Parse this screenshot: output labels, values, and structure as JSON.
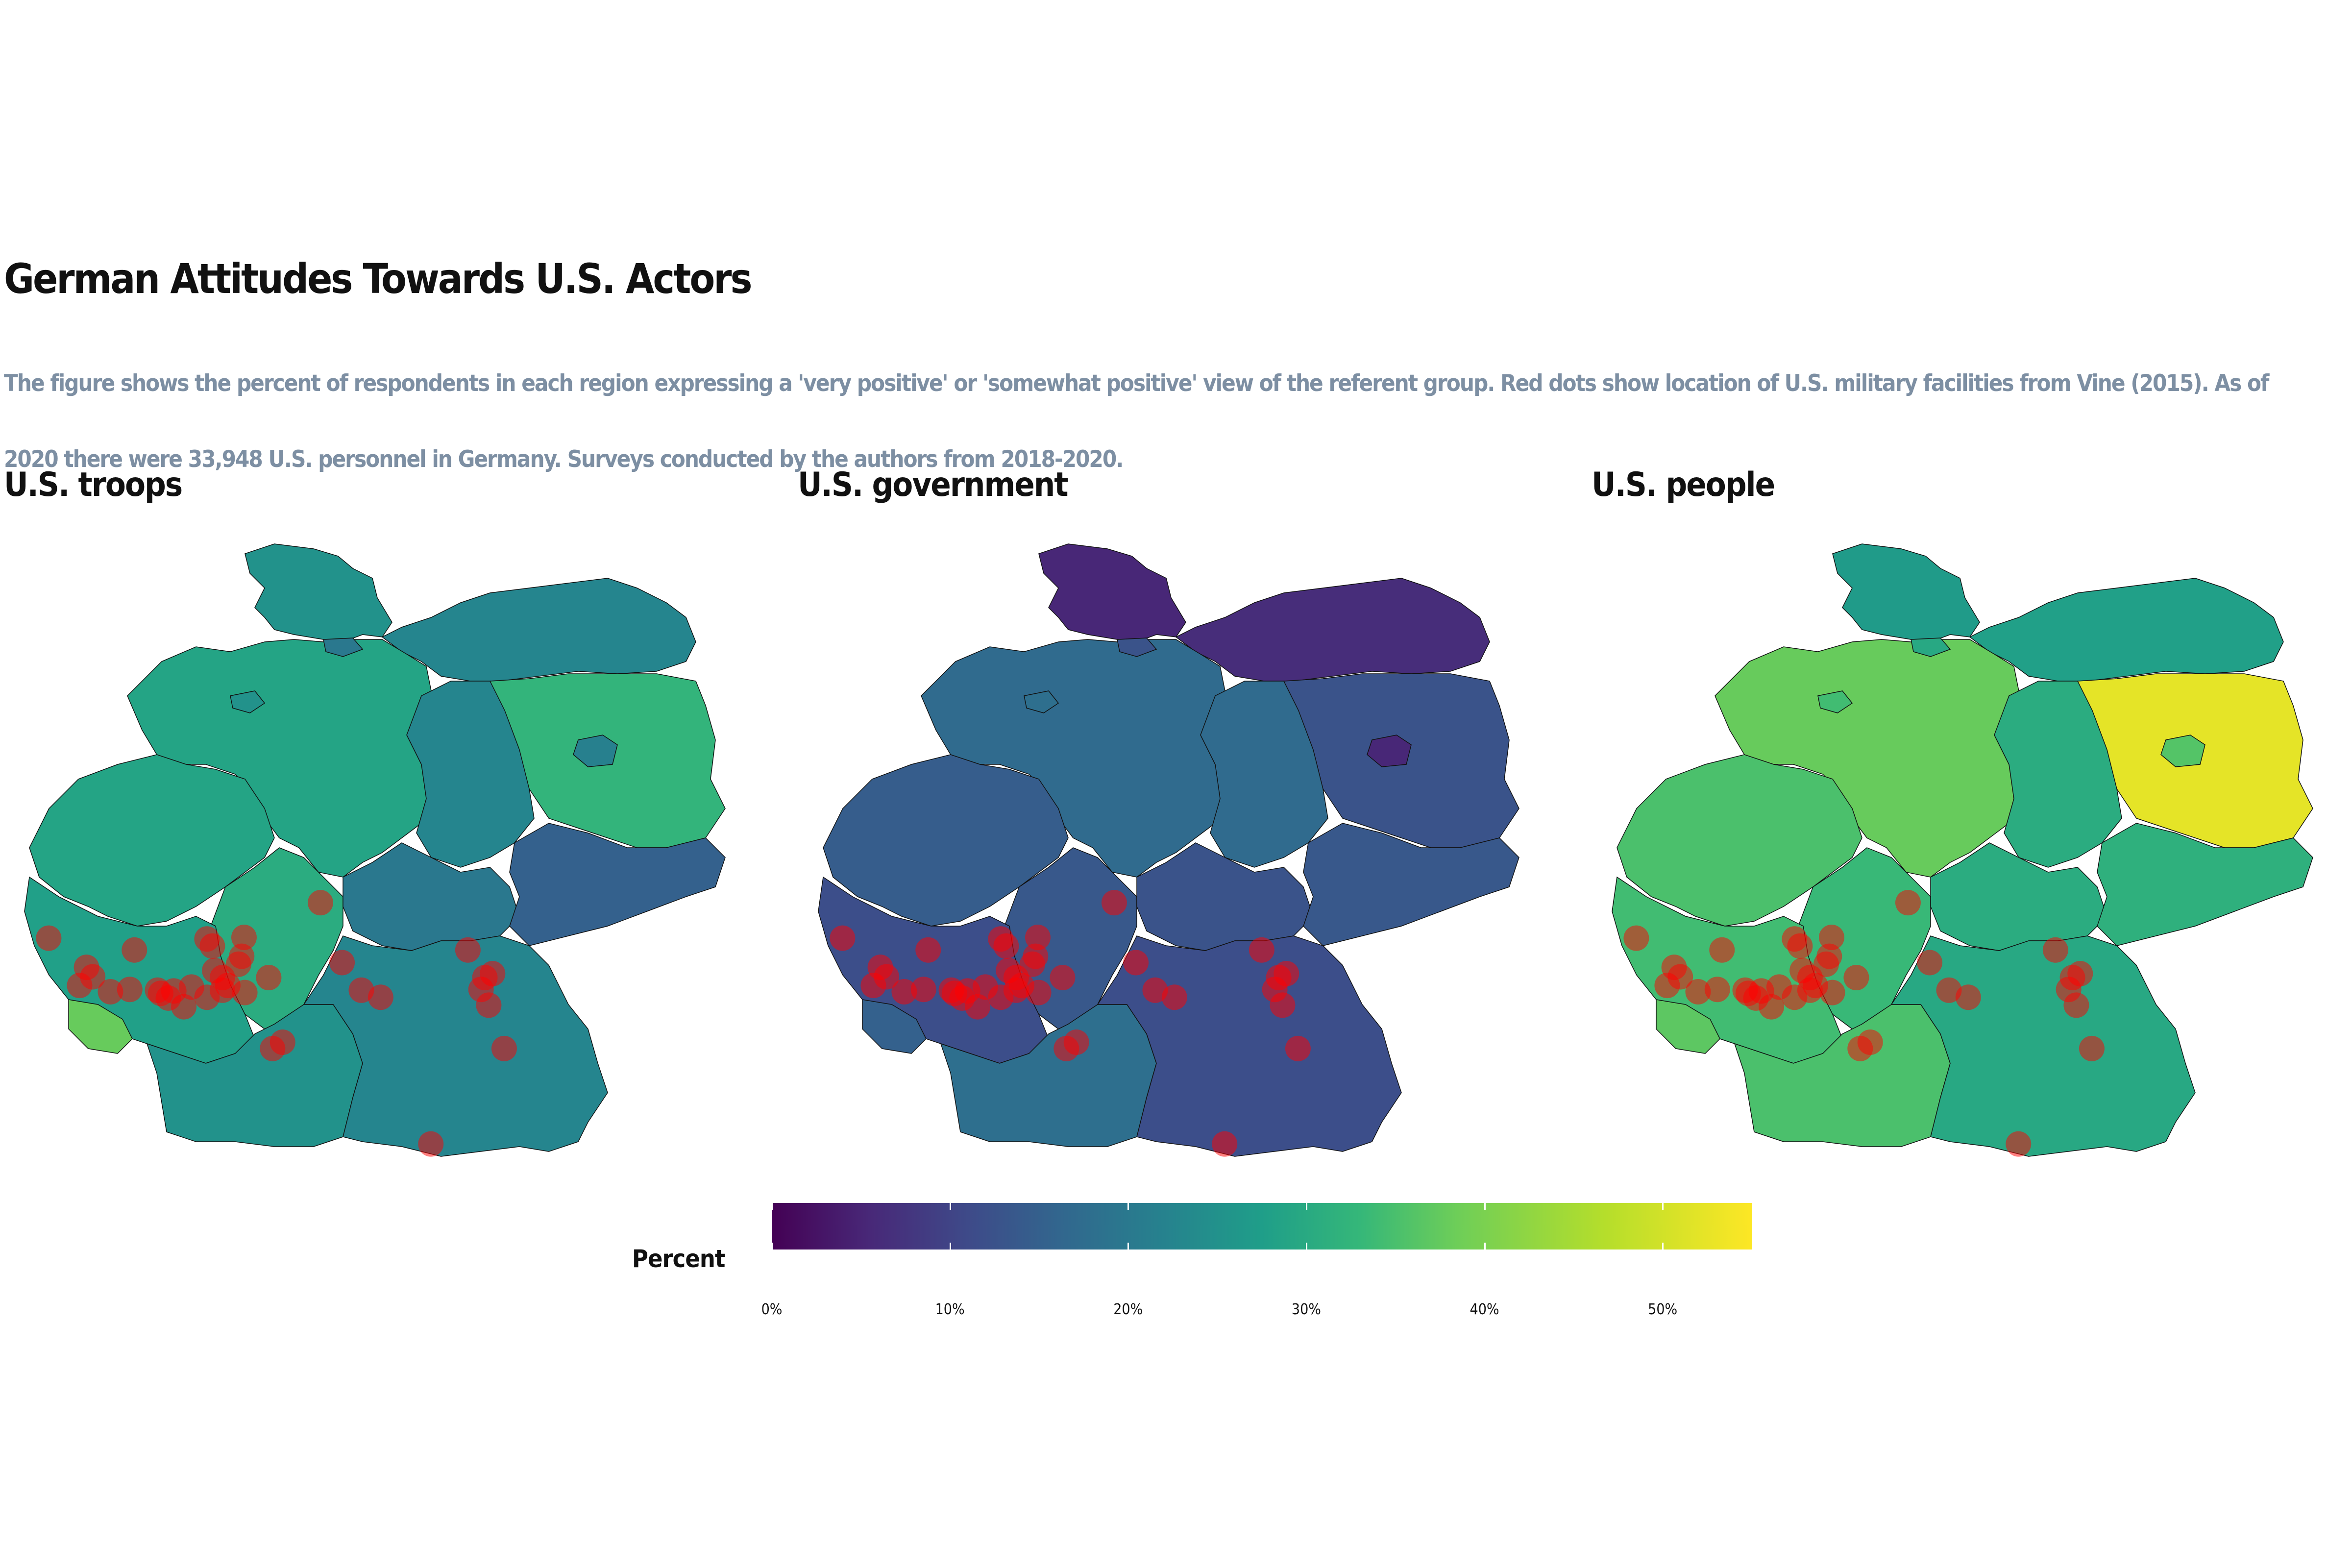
{
  "title": "German Attitudes Towards U.S. Actors",
  "subtitle": "The figure shows the percent of respondents in each region expressing a 'very positive' or 'somewhat positive' view of the referent group. Red dots show location of U.S. military facilities from Vine (2015). As of 2020 there were 33,948 U.S. personnel in Germany. Surveys conducted by the authors from 2018-2020.",
  "panels": [
    {
      "title": "U.S. troops",
      "region_values": {
        "schleswig-holstein": 28,
        "hamburg": 22,
        "mecklenburg-vorpommern": 25,
        "niedersachsen": 32,
        "bremen": 28,
        "brandenburg": 36,
        "berlin": 24,
        "sachsen-anhalt": 25,
        "nordrhein-westfalen": 32,
        "hessen": 34,
        "thueringen": 22,
        "sachsen": 17,
        "rheinland-pfalz": 31,
        "saarland": 42,
        "baden-wuerttemberg": 28,
        "bayern": 25
      }
    },
    {
      "title": "U.S. government",
      "region_values": {
        "schleswig-holstein": 6,
        "hamburg": 14,
        "mecklenburg-vorpommern": 7,
        "niedersachsen": 19,
        "bremen": 20,
        "brandenburg": 14,
        "berlin": 6,
        "sachsen-anhalt": 19,
        "nordrhein-westfalen": 16,
        "hessen": 15,
        "thueringen": 14,
        "sachsen": 15,
        "rheinland-pfalz": 13,
        "saarland": 17,
        "baden-wuerttemberg": 20,
        "bayern": 13
      }
    },
    {
      "title": "U.S. people",
      "region_values": {
        "schleswig-holstein": 30,
        "hamburg": 33,
        "mecklenburg-vorpommern": 31,
        "niedersachsen": 42,
        "bremen": 38,
        "brandenburg": 53,
        "berlin": 40,
        "sachsen-anhalt": 34,
        "nordrhein-westfalen": 39,
        "hessen": 37,
        "thueringen": 34,
        "sachsen": 35,
        "rheinland-pfalz": 38,
        "saarland": 41,
        "baden-wuerttemberg": 39,
        "bayern": 33
      }
    }
  ],
  "legend": {
    "title": "Percent",
    "min": 0,
    "max": 55,
    "ticks": [
      0,
      10,
      20,
      30,
      40,
      50
    ],
    "tick_labels": [
      "0%",
      "10%",
      "20%",
      "30%",
      "40%",
      "50%"
    ]
  },
  "colors": {
    "viridis": [
      "#440154",
      "#482878",
      "#3e4a89",
      "#31688e",
      "#26828e",
      "#1f9e89",
      "#35b779",
      "#6ece58",
      "#b5de2b",
      "#fde725"
    ],
    "facility_dot": "#ff0000",
    "border": "#111111"
  },
  "facilities": [
    {
      "lat": 50.1,
      "lon": 6.15
    },
    {
      "lat": 49.95,
      "lon": 7.26
    },
    {
      "lat": 49.73,
      "lon": 6.64
    },
    {
      "lat": 49.61,
      "lon": 6.72
    },
    {
      "lat": 49.5,
      "lon": 6.55
    },
    {
      "lat": 49.42,
      "lon": 6.95
    },
    {
      "lat": 49.45,
      "lon": 7.2
    },
    {
      "lat": 49.44,
      "lon": 7.56
    },
    {
      "lat": 49.43,
      "lon": 7.77
    },
    {
      "lat": 49.4,
      "lon": 7.6
    },
    {
      "lat": 49.34,
      "lon": 7.7
    },
    {
      "lat": 49.48,
      "lon": 8.0
    },
    {
      "lat": 49.5,
      "lon": 8.47
    },
    {
      "lat": 49.41,
      "lon": 8.69
    },
    {
      "lat": 49.35,
      "lon": 8.2
    },
    {
      "lat": 49.44,
      "lon": 8.4
    },
    {
      "lat": 49.6,
      "lon": 8.4
    },
    {
      "lat": 49.87,
      "lon": 8.65
    },
    {
      "lat": 50.0,
      "lon": 8.27
    },
    {
      "lat": 50.11,
      "lon": 8.68
    },
    {
      "lat": 50.09,
      "lon": 8.2
    },
    {
      "lat": 49.77,
      "lon": 8.61
    },
    {
      "lat": 49.69,
      "lon": 8.3
    },
    {
      "lat": 49.23,
      "lon": 7.9
    },
    {
      "lat": 49.6,
      "lon": 9.0
    },
    {
      "lat": 50.55,
      "lon": 9.67
    },
    {
      "lat": 49.79,
      "lon": 9.95
    },
    {
      "lat": 49.44,
      "lon": 10.2
    },
    {
      "lat": 49.35,
      "lon": 10.45
    },
    {
      "lat": 48.78,
      "lon": 9.18
    },
    {
      "lat": 48.7,
      "lon": 9.05
    },
    {
      "lat": 49.95,
      "lon": 11.58
    },
    {
      "lat": 49.6,
      "lon": 11.8
    },
    {
      "lat": 49.65,
      "lon": 11.9
    },
    {
      "lat": 49.45,
      "lon": 11.75
    },
    {
      "lat": 49.25,
      "lon": 11.85
    },
    {
      "lat": 48.7,
      "lon": 12.05
    },
    {
      "lat": 47.49,
      "lon": 11.1
    }
  ]
}
